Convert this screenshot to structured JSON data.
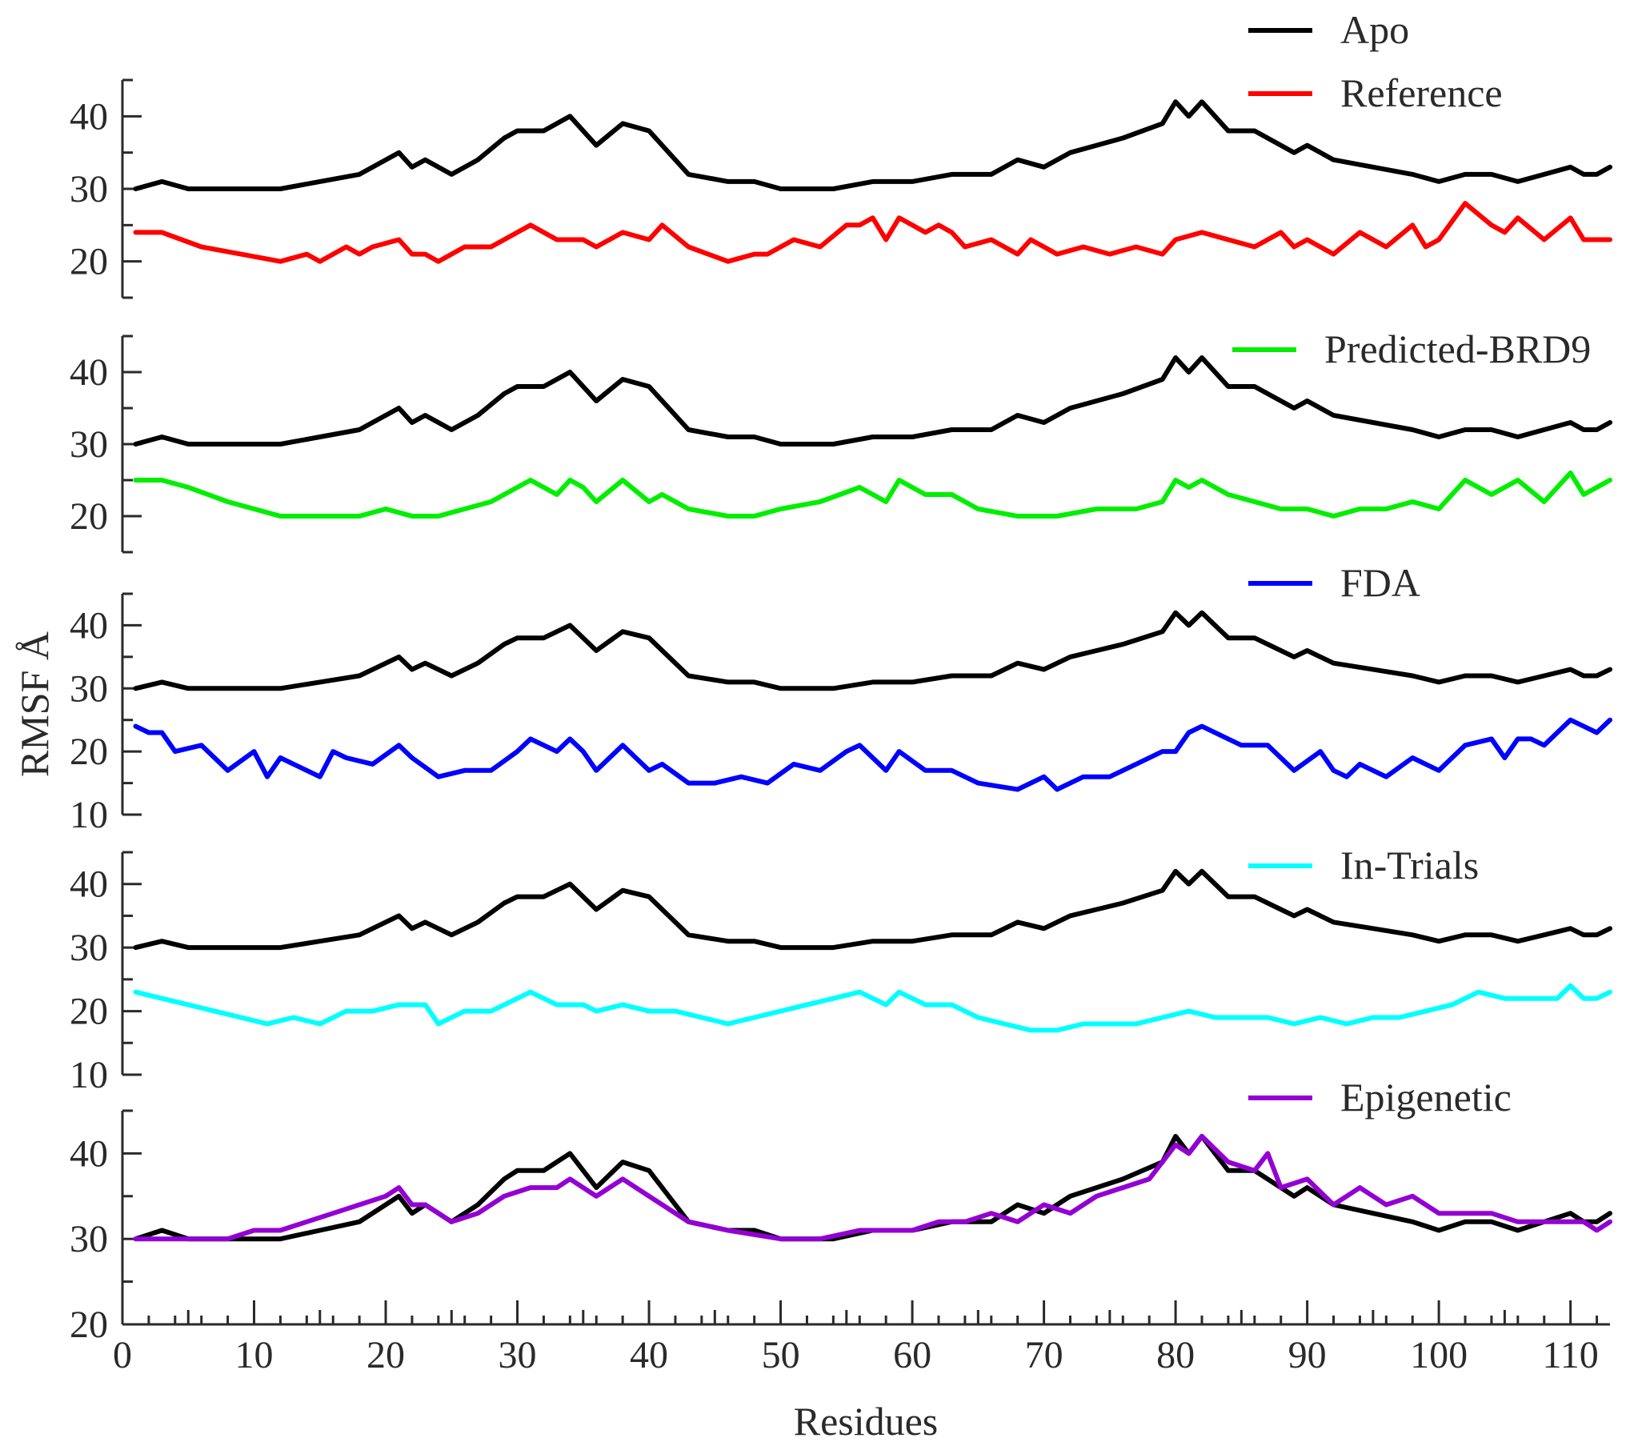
{
  "chart_data": {
    "type": "line",
    "xlabel": "Residues",
    "ylabel": "RMSF Å",
    "xlim": [
      0,
      113
    ],
    "x_ticks": [
      0,
      10,
      20,
      30,
      40,
      50,
      60,
      70,
      80,
      90,
      100,
      110
    ],
    "colors": {
      "Apo": "#000000",
      "Reference": "#ff0000",
      "Predicted-BRD9": "#00ee00",
      "FDA": "#0000ff",
      "In-Trials": "#00ffff",
      "Epigenetic": "#9400d3"
    },
    "apo_profile": {
      "x": [
        1,
        3,
        5,
        8,
        12,
        15,
        18,
        21,
        22,
        23,
        25,
        27,
        29,
        30,
        32,
        34,
        36,
        38,
        40,
        43,
        46,
        48,
        50,
        54,
        57,
        60,
        63,
        66,
        68,
        70,
        72,
        74,
        76,
        79,
        80,
        81,
        82,
        84,
        86,
        88,
        89,
        90,
        92,
        95,
        98,
        100,
        102,
        104,
        106,
        108,
        110,
        111,
        112,
        113
      ],
      "y": [
        30,
        31,
        30,
        30,
        30,
        31,
        32,
        35,
        33,
        34,
        32,
        34,
        37,
        38,
        38,
        40,
        36,
        39,
        38,
        32,
        31,
        31,
        30,
        30,
        31,
        31,
        32,
        32,
        34,
        33,
        35,
        36,
        37,
        39,
        42,
        40,
        42,
        38,
        38,
        36,
        35,
        36,
        34,
        33,
        32,
        31,
        32,
        32,
        31,
        32,
        33,
        32,
        32,
        33
      ]
    },
    "panels": [
      {
        "ylim": [
          15,
          45
        ],
        "y_ticks": [
          20,
          30,
          40
        ],
        "legend": [
          "Apo",
          "Reference"
        ],
        "series": [
          {
            "name": "Reference",
            "x": [
              1,
              3,
              6,
              9,
              12,
              14,
              15,
              17,
              18,
              19,
              21,
              22,
              23,
              24,
              26,
              28,
              30,
              31,
              33,
              35,
              36,
              38,
              40,
              41,
              43,
              46,
              48,
              49,
              51,
              53,
              55,
              56,
              57,
              58,
              59,
              60,
              61,
              62,
              63,
              64,
              66,
              68,
              69,
              70,
              71,
              73,
              75,
              77,
              79,
              80,
              82,
              84,
              86,
              88,
              89,
              90,
              92,
              94,
              96,
              98,
              99,
              100,
              102,
              104,
              105,
              106,
              108,
              110,
              111,
              112,
              113
            ],
            "y": [
              24,
              24,
              22,
              21,
              20,
              21,
              20,
              22,
              21,
              22,
              23,
              21,
              21,
              20,
              22,
              22,
              24,
              25,
              23,
              23,
              22,
              24,
              23,
              25,
              22,
              20,
              21,
              21,
              23,
              22,
              25,
              25,
              26,
              23,
              26,
              25,
              24,
              25,
              24,
              22,
              23,
              21,
              23,
              22,
              21,
              22,
              21,
              22,
              21,
              23,
              24,
              23,
              22,
              24,
              22,
              23,
              21,
              24,
              22,
              25,
              22,
              23,
              28,
              25,
              24,
              26,
              23,
              26,
              23,
              23,
              23
            ]
          }
        ]
      },
      {
        "ylim": [
          15,
          45
        ],
        "y_ticks": [
          20,
          30,
          40
        ],
        "legend": [
          "Predicted-BRD9"
        ],
        "series": [
          {
            "name": "Predicted-BRD9",
            "x": [
              1,
              3,
              5,
              8,
              10,
              12,
              14,
              16,
              18,
              20,
              22,
              24,
              26,
              28,
              30,
              31,
              33,
              34,
              35,
              36,
              38,
              40,
              41,
              43,
              46,
              48,
              50,
              53,
              56,
              58,
              59,
              61,
              63,
              65,
              68,
              71,
              74,
              77,
              79,
              80,
              81,
              82,
              84,
              86,
              88,
              90,
              92,
              94,
              96,
              98,
              100,
              102,
              104,
              106,
              108,
              110,
              111,
              112,
              113
            ],
            "y": [
              25,
              25,
              24,
              22,
              21,
              20,
              20,
              20,
              20,
              21,
              20,
              20,
              21,
              22,
              24,
              25,
              23,
              25,
              24,
              22,
              25,
              22,
              23,
              21,
              20,
              20,
              21,
              22,
              24,
              22,
              25,
              23,
              23,
              21,
              20,
              20,
              21,
              21,
              22,
              25,
              24,
              25,
              23,
              22,
              21,
              21,
              20,
              21,
              21,
              22,
              21,
              25,
              23,
              25,
              22,
              26,
              23,
              24,
              25
            ]
          }
        ]
      },
      {
        "ylim": [
          10,
          45
        ],
        "y_ticks": [
          10,
          20,
          30,
          40
        ],
        "legend": [
          "FDA"
        ],
        "series": [
          {
            "name": "FDA",
            "x": [
              1,
              2,
              3,
              4,
              6,
              8,
              10,
              11,
              12,
              13,
              15,
              16,
              17,
              19,
              21,
              22,
              24,
              26,
              28,
              30,
              31,
              33,
              34,
              35,
              36,
              38,
              39,
              40,
              41,
              43,
              45,
              47,
              49,
              51,
              53,
              55,
              56,
              58,
              59,
              61,
              63,
              65,
              68,
              70,
              71,
              73,
              75,
              77,
              79,
              80,
              81,
              82,
              84,
              85,
              87,
              89,
              91,
              92,
              93,
              94,
              96,
              98,
              100,
              102,
              104,
              105,
              106,
              107,
              108,
              110,
              111,
              112,
              113
            ],
            "y": [
              24,
              23,
              23,
              20,
              21,
              17,
              20,
              16,
              19,
              18,
              16,
              20,
              19,
              18,
              21,
              19,
              16,
              17,
              17,
              20,
              22,
              20,
              22,
              20,
              17,
              21,
              19,
              17,
              18,
              15,
              15,
              16,
              15,
              18,
              17,
              20,
              21,
              17,
              20,
              17,
              17,
              15,
              14,
              16,
              14,
              16,
              16,
              18,
              20,
              20,
              23,
              24,
              22,
              21,
              21,
              17,
              20,
              17,
              16,
              18,
              16,
              19,
              17,
              21,
              22,
              19,
              22,
              22,
              21,
              25,
              24,
              23,
              25
            ]
          }
        ]
      },
      {
        "ylim": [
          10,
          45
        ],
        "y_ticks": [
          10,
          20,
          30,
          40
        ],
        "legend": [
          "In-Trials"
        ],
        "series": [
          {
            "name": "In-Trials",
            "x": [
              1,
              3,
              5,
              7,
              9,
              11,
              13,
              15,
              17,
              19,
              21,
              23,
              24,
              26,
              28,
              30,
              31,
              33,
              35,
              36,
              38,
              40,
              42,
              44,
              46,
              48,
              50,
              52,
              54,
              56,
              58,
              59,
              61,
              63,
              65,
              67,
              69,
              71,
              73,
              75,
              77,
              79,
              81,
              83,
              85,
              87,
              89,
              91,
              93,
              95,
              97,
              99,
              101,
              103,
              105,
              107,
              109,
              110,
              111,
              112,
              113
            ],
            "y": [
              23,
              22,
              21,
              20,
              19,
              18,
              19,
              18,
              20,
              20,
              21,
              21,
              18,
              20,
              20,
              22,
              23,
              21,
              21,
              20,
              21,
              20,
              20,
              19,
              18,
              19,
              20,
              21,
              22,
              23,
              21,
              23,
              21,
              21,
              19,
              18,
              17,
              17,
              18,
              18,
              18,
              19,
              20,
              19,
              19,
              19,
              18,
              19,
              18,
              19,
              19,
              20,
              21,
              23,
              22,
              22,
              22,
              24,
              22,
              22,
              23
            ]
          }
        ]
      },
      {
        "ylim": [
          20,
          45
        ],
        "y_ticks": [
          20,
          30,
          40
        ],
        "legend": [
          "Epigenetic"
        ],
        "series": [
          {
            "name": "Epigenetic",
            "x": [
              1,
              3,
              5,
              8,
              10,
              12,
              14,
              16,
              18,
              20,
              21,
              22,
              23,
              25,
              27,
              29,
              31,
              33,
              34,
              36,
              38,
              40,
              43,
              46,
              50,
              53,
              56,
              58,
              60,
              62,
              64,
              66,
              68,
              70,
              72,
              74,
              76,
              78,
              80,
              81,
              82,
              84,
              86,
              87,
              88,
              90,
              92,
              94,
              96,
              98,
              100,
              102,
              104,
              106,
              108,
              110,
              111,
              112,
              113
            ],
            "y": [
              30,
              30,
              30,
              30,
              31,
              31,
              32,
              33,
              34,
              35,
              36,
              34,
              34,
              32,
              33,
              35,
              36,
              36,
              37,
              35,
              37,
              35,
              32,
              31,
              30,
              30,
              31,
              31,
              31,
              32,
              32,
              33,
              32,
              34,
              33,
              35,
              36,
              37,
              41,
              40,
              42,
              39,
              38,
              40,
              36,
              37,
              34,
              36,
              34,
              35,
              33,
              33,
              33,
              32,
              32,
              32,
              32,
              31,
              32
            ]
          }
        ]
      }
    ]
  }
}
